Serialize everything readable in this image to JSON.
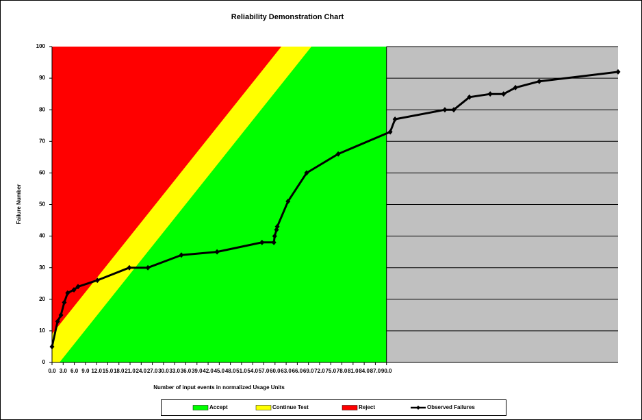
{
  "chart_data": {
    "type": "line",
    "title": "Reliability Demonstration Chart",
    "x_label": "Number of input events in normalized Usage Units",
    "y_label": "Failure Number",
    "xlim": [
      0,
      152.3
    ],
    "ylim": [
      0,
      100
    ],
    "xticks": [
      {
        "value": 0,
        "label": "0.0"
      },
      {
        "value": 3,
        "label": "3.0"
      },
      {
        "value": 6,
        "label": "6.0"
      },
      {
        "value": 9,
        "label": "9.0"
      },
      {
        "value": 12,
        "label": "12.0"
      },
      {
        "value": 15,
        "label": "15.0"
      },
      {
        "value": 18,
        "label": "18.0"
      },
      {
        "value": 21,
        "label": "21.0"
      },
      {
        "value": 24,
        "label": "24.0"
      },
      {
        "value": 27,
        "label": "27.0"
      },
      {
        "value": 30,
        "label": "30.0"
      },
      {
        "value": 33,
        "label": "33.0"
      },
      {
        "value": 36,
        "label": "36.0"
      },
      {
        "value": 39,
        "label": "39.0"
      },
      {
        "value": 42,
        "label": "42.0"
      },
      {
        "value": 45,
        "label": "45.0"
      },
      {
        "value": 48,
        "label": "48.0"
      },
      {
        "value": 51,
        "label": "51.0"
      },
      {
        "value": 54,
        "label": "54.0"
      },
      {
        "value": 57,
        "label": "57.0"
      },
      {
        "value": 60,
        "label": "60.0"
      },
      {
        "value": 63,
        "label": "63.0"
      },
      {
        "value": 66,
        "label": "66.0"
      },
      {
        "value": 69,
        "label": "69.0"
      },
      {
        "value": 72,
        "label": "72.0"
      },
      {
        "value": 75,
        "label": "75.0"
      },
      {
        "value": 78,
        "label": "78.0"
      },
      {
        "value": 81,
        "label": "81.0"
      },
      {
        "value": 84,
        "label": "84.0"
      },
      {
        "value": 87,
        "label": "87.0"
      },
      {
        "value": 90,
        "label": "90.0"
      }
    ],
    "yticks": [
      0,
      10,
      20,
      30,
      40,
      50,
      60,
      70,
      80,
      90,
      100
    ],
    "test_end": 90,
    "beyond_color": "#c0c0c0",
    "series": [
      {
        "name": "Accept",
        "color": "#00ff00",
        "x": [
          2,
          69.8
        ],
        "values": [
          0,
          100
        ]
      },
      {
        "name": "Continue Test",
        "color": "#ffff00"
      },
      {
        "name": "Reject",
        "color": "#ff0000",
        "x": [
          0,
          61.7
        ],
        "values": [
          9,
          100
        ]
      },
      {
        "name": "Observed Failures",
        "color": "#000000",
        "x": [
          0,
          1.5,
          2.4,
          3.3,
          4.2,
          5.9,
          7.0,
          12.2,
          20.8,
          25.8,
          34.8,
          44.4,
          56.5,
          59.7,
          59.9,
          60.4,
          60.6,
          63.5,
          68.5,
          77.0,
          91.0,
          92.3,
          105.7,
          108.1,
          112.3,
          117.9,
          121.5,
          124.7,
          131.1,
          152.3
        ],
        "values": [
          5,
          13,
          15,
          19,
          22,
          23,
          24,
          26,
          30,
          30,
          34,
          35,
          38,
          38,
          40,
          42,
          43,
          51,
          60,
          66,
          73,
          77,
          80,
          80,
          84,
          85,
          85,
          87,
          89,
          92
        ]
      }
    ]
  }
}
